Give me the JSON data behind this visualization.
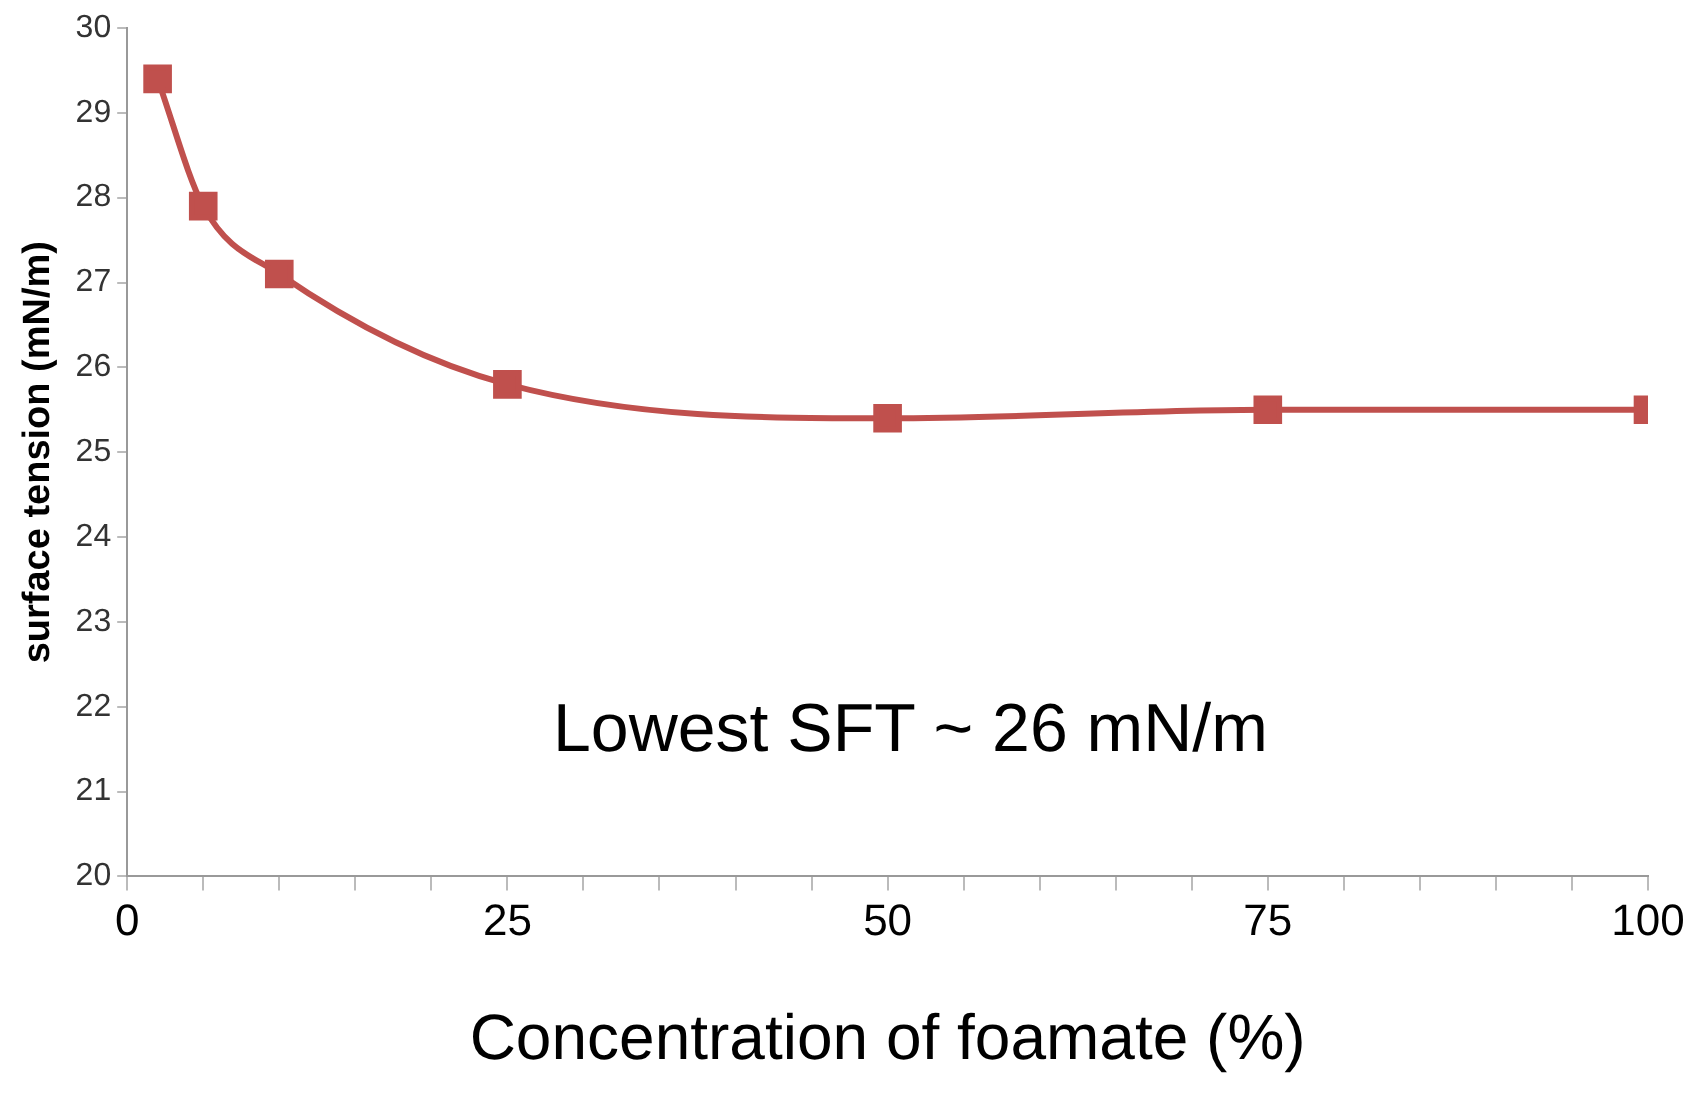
{
  "chart_data": {
    "type": "line",
    "xlabel": "Concentration of foamate (%)",
    "ylabel": "surface tension (mN/m)",
    "x": [
      2,
      5,
      10,
      25,
      50,
      75,
      100
    ],
    "series": [
      {
        "color": "#c0504d",
        "values": [
          29.4,
          27.9,
          27.1,
          25.8,
          25.4,
          25.5,
          25.5
        ]
      }
    ],
    "xlim": [
      0,
      100
    ],
    "xticks": [
      0,
      {
        "value": 5,
        "label": null
      },
      {
        "value": 10,
        "label": null
      },
      {
        "value": 15,
        "label": null
      },
      {
        "value": 20,
        "label": null
      },
      25,
      {
        "value": 30,
        "label": null
      },
      {
        "value": 35,
        "label": null
      },
      {
        "value": 40,
        "label": null
      },
      {
        "value": 45,
        "label": null
      },
      50,
      {
        "value": 55,
        "label": null
      },
      {
        "value": 60,
        "label": null
      },
      {
        "value": 65,
        "label": null
      },
      {
        "value": 70,
        "label": null
      },
      75,
      {
        "value": 80,
        "label": null
      },
      {
        "value": 85,
        "label": null
      },
      {
        "value": 90,
        "label": null
      },
      {
        "value": 95,
        "label": null
      },
      100
    ],
    "ylim": [
      20,
      30
    ],
    "yticks": [
      20,
      21,
      22,
      23,
      24,
      25,
      26,
      27,
      28,
      29,
      30
    ],
    "grid": false,
    "legend": false,
    "marker": "square",
    "line_style": "solid",
    "annotations": [
      "Lowest SFT ~ 26 mN/m"
    ]
  }
}
